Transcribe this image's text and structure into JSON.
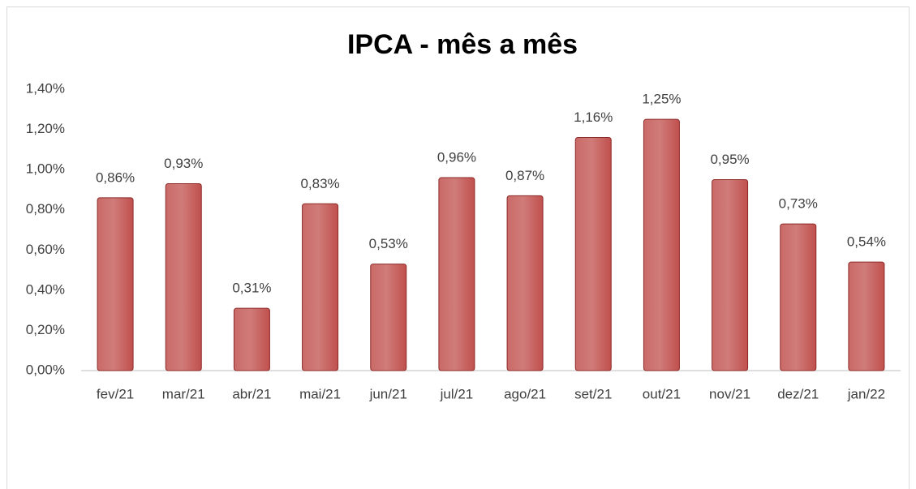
{
  "chart_data": {
    "type": "bar",
    "title": "IPCA - mês a mês",
    "categories": [
      "fev/21",
      "mar/21",
      "abr/21",
      "mai/21",
      "jun/21",
      "jul/21",
      "ago/21",
      "set/21",
      "out/21",
      "nov/21",
      "dez/21",
      "jan/22"
    ],
    "values": [
      0.86,
      0.93,
      0.31,
      0.83,
      0.53,
      0.96,
      0.87,
      1.16,
      1.25,
      0.95,
      0.73,
      0.54
    ],
    "value_labels": [
      "0,86%",
      "0,93%",
      "0,31%",
      "0,83%",
      "0,53%",
      "0,96%",
      "0,87%",
      "1,16%",
      "1,25%",
      "0,95%",
      "0,73%",
      "0,54%"
    ],
    "color": "#c0504d",
    "ylim": [
      0,
      1.4
    ],
    "yticks": [
      {
        "value": 0,
        "label": "0,00%"
      },
      {
        "value": 0.2,
        "label": "0,20%"
      },
      {
        "value": 0.4,
        "label": "0,40%"
      },
      {
        "value": 0.6,
        "label": "0,60%"
      },
      {
        "value": 0.8,
        "label": "0,80%"
      },
      {
        "value": 1.0,
        "label": "1,00%"
      },
      {
        "value": 1.2,
        "label": "1,20%"
      },
      {
        "value": 1.4,
        "label": "1,40%"
      }
    ],
    "grid": false
  }
}
